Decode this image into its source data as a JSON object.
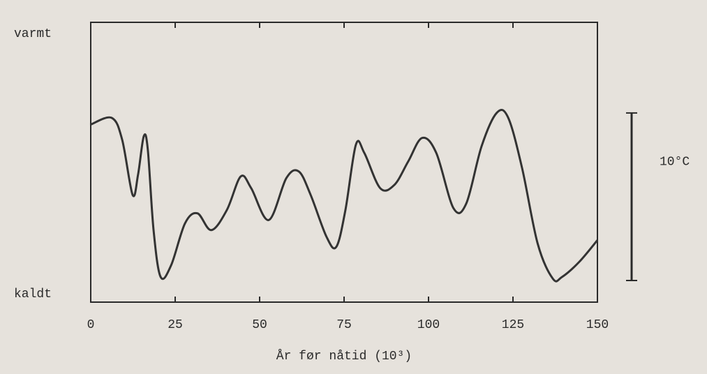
{
  "chart_data": {
    "type": "line",
    "x_label": "År før nåtid (10³)",
    "x": [
      0,
      6.2,
      9.3,
      12.4,
      14,
      15.7,
      16.9,
      18.6,
      20.7,
      23.8,
      27.9,
      31.6,
      35.7,
      40.3,
      44.4,
      47.5,
      52.7,
      57.9,
      61.6,
      65.1,
      69.8,
      72.7,
      75.4,
      78.5,
      81,
      85.7,
      89.9,
      94,
      98.1,
      102.3,
      107.4,
      111.2,
      115.7,
      120.2,
      123.6,
      127.7,
      132.3,
      136.8,
      139.5,
      144.6,
      150
    ],
    "series": [
      {
        "color": "#333333",
        "values": [
          10.6,
          11.0,
          9.7,
          6.4,
          7.6,
          9.9,
          9.1,
          4.3,
          1.5,
          2.2,
          4.7,
          5.3,
          4.3,
          5.5,
          7.5,
          6.8,
          4.9,
          7.4,
          7.8,
          6.4,
          3.9,
          3.3,
          5.5,
          9.4,
          8.9,
          6.8,
          7.0,
          8.4,
          9.8,
          8.9,
          5.6,
          5.9,
          9.3,
          11.3,
          11.0,
          8.0,
          3.5,
          1.4,
          1.5,
          2.4,
          3.7
        ]
      }
    ],
    "xlim": [
      0,
      150
    ],
    "xticks": [
      0,
      25,
      50,
      75,
      100,
      125,
      150
    ],
    "ylim": [
      0,
      16.7
    ],
    "yticks": [
      {
        "value": 16.7,
        "label": "varmt"
      },
      {
        "value": 0,
        "label": "kaldt"
      }
    ],
    "scale_bar": {
      "value": 10,
      "label": "10°C"
    }
  }
}
